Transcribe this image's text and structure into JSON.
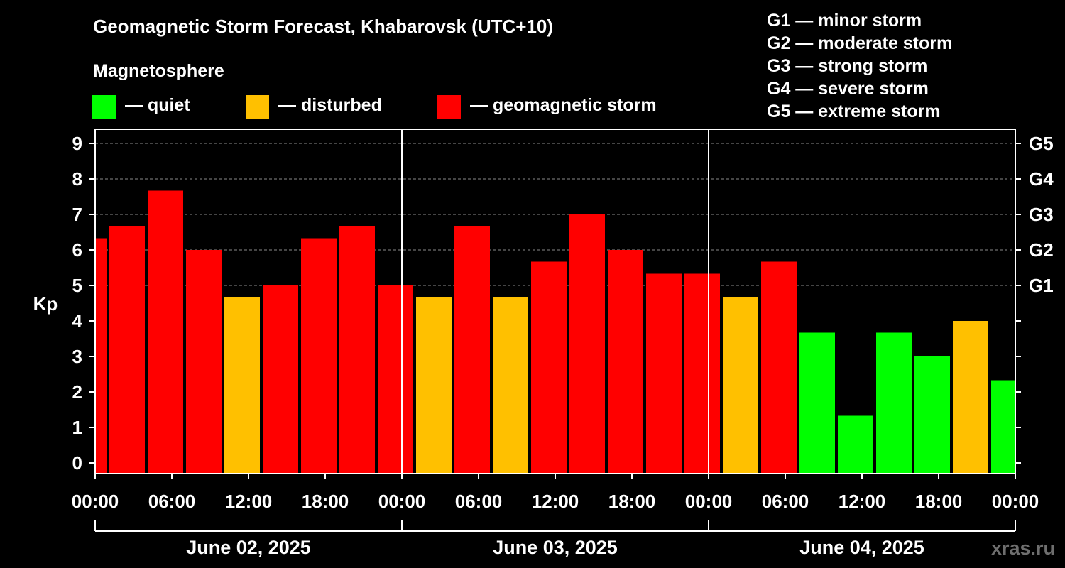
{
  "header": {
    "title": "Geomagnetic Storm Forecast, Khabarovsk (UTC+10)",
    "subtitle": "Magnetosphere"
  },
  "legend": [
    {
      "label": "— quiet",
      "color": "#00ff00"
    },
    {
      "label": "— disturbed",
      "color": "#ffc000"
    },
    {
      "label": "— geomagnetic storm",
      "color": "#ff0000"
    }
  ],
  "storm_levels": [
    "G1 — minor storm",
    "G2 — moderate storm",
    "G3 — strong storm",
    "G4 — severe storm",
    "G5 — extreme storm"
  ],
  "watermark": "xras.ru",
  "chart_data": {
    "type": "bar",
    "ylabel": "Kp",
    "ylim": [
      0,
      9
    ],
    "yticks": [
      "0",
      "1",
      "2",
      "3",
      "4",
      "5",
      "6",
      "7",
      "8",
      "9"
    ],
    "right_ticks": [
      {
        "kp": 5,
        "label": "G1"
      },
      {
        "kp": 6,
        "label": "G2"
      },
      {
        "kp": 7,
        "label": "G3"
      },
      {
        "kp": 8,
        "label": "G4"
      },
      {
        "kp": 9,
        "label": "G5"
      }
    ],
    "xticks": [
      "00:00",
      "06:00",
      "12:00",
      "18:00",
      "00:00",
      "06:00",
      "12:00",
      "18:00",
      "00:00",
      "06:00",
      "12:00",
      "18:00",
      "00:00"
    ],
    "dates": [
      "June 02, 2025",
      "June 03, 2025",
      "June 04, 2025"
    ],
    "grid": "dashed horizontal at Kp 5-9",
    "colors": {
      "quiet": "#00ff00",
      "disturbed": "#ffc000",
      "storm": "#ff0000"
    },
    "bars": [
      {
        "start_hour": 0,
        "end_hour": 1,
        "kp": 6.33
      },
      {
        "start_hour": 1,
        "end_hour": 4,
        "kp": 6.67
      },
      {
        "start_hour": 4,
        "end_hour": 7,
        "kp": 7.67
      },
      {
        "start_hour": 7,
        "end_hour": 10,
        "kp": 6.0
      },
      {
        "start_hour": 10,
        "end_hour": 13,
        "kp": 4.67
      },
      {
        "start_hour": 13,
        "end_hour": 16,
        "kp": 5.0
      },
      {
        "start_hour": 16,
        "end_hour": 19,
        "kp": 6.33
      },
      {
        "start_hour": 19,
        "end_hour": 22,
        "kp": 6.67
      },
      {
        "start_hour": 22,
        "end_hour": 25,
        "kp": 5.0
      },
      {
        "start_hour": 25,
        "end_hour": 28,
        "kp": 4.67
      },
      {
        "start_hour": 28,
        "end_hour": 31,
        "kp": 6.67
      },
      {
        "start_hour": 31,
        "end_hour": 34,
        "kp": 4.67
      },
      {
        "start_hour": 34,
        "end_hour": 37,
        "kp": 5.67
      },
      {
        "start_hour": 37,
        "end_hour": 40,
        "kp": 7.0
      },
      {
        "start_hour": 40,
        "end_hour": 43,
        "kp": 6.0
      },
      {
        "start_hour": 43,
        "end_hour": 46,
        "kp": 5.33
      },
      {
        "start_hour": 46,
        "end_hour": 49,
        "kp": 5.33
      },
      {
        "start_hour": 49,
        "end_hour": 52,
        "kp": 4.67
      },
      {
        "start_hour": 52,
        "end_hour": 55,
        "kp": 5.67
      },
      {
        "start_hour": 55,
        "end_hour": 58,
        "kp": 3.67
      },
      {
        "start_hour": 58,
        "end_hour": 61,
        "kp": 1.33
      },
      {
        "start_hour": 61,
        "end_hour": 64,
        "kp": 3.67
      },
      {
        "start_hour": 64,
        "end_hour": 67,
        "kp": 3.0
      },
      {
        "start_hour": 67,
        "end_hour": 70,
        "kp": 4.0
      },
      {
        "start_hour": 70,
        "end_hour": 72,
        "kp": 2.33
      }
    ]
  }
}
